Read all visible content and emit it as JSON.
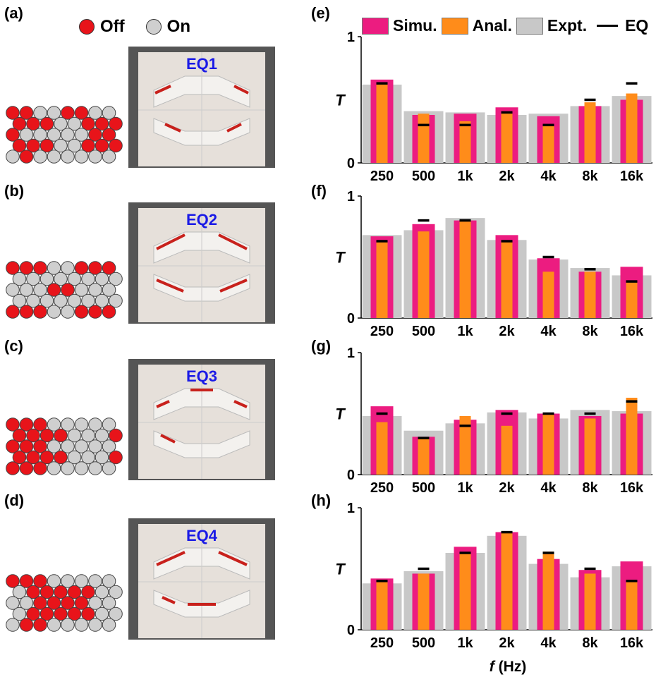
{
  "legend_state": {
    "off": "Off",
    "on": "On",
    "off_color": "#e8141a",
    "on_color": "#cfcfcf"
  },
  "panels_left": [
    {
      "label": "(a)",
      "eq": "EQ1",
      "grid": [
        [
          1,
          1,
          0,
          0,
          1,
          1,
          0,
          0
        ],
        [
          1,
          1,
          1,
          0,
          0,
          1,
          1,
          1
        ],
        [
          1,
          0,
          0,
          0,
          0,
          0,
          1,
          1
        ],
        [
          1,
          1,
          1,
          0,
          0,
          1,
          1,
          1
        ],
        [
          0,
          1,
          0,
          0,
          0,
          0,
          0,
          0
        ]
      ]
    },
    {
      "label": "(b)",
      "eq": "EQ2",
      "grid": [
        [
          1,
          1,
          1,
          0,
          0,
          1,
          1,
          1
        ],
        [
          0,
          0,
          0,
          0,
          0,
          0,
          0,
          0
        ],
        [
          0,
          0,
          0,
          1,
          1,
          0,
          0,
          0
        ],
        [
          0,
          0,
          0,
          0,
          0,
          0,
          0,
          0
        ],
        [
          1,
          1,
          1,
          0,
          0,
          1,
          1,
          1
        ]
      ]
    },
    {
      "label": "(c)",
      "eq": "EQ3",
      "grid": [
        [
          1,
          1,
          1,
          0,
          0,
          0,
          0,
          0
        ],
        [
          1,
          1,
          1,
          1,
          0,
          0,
          0,
          1
        ],
        [
          1,
          1,
          1,
          0,
          0,
          0,
          0,
          0
        ],
        [
          1,
          1,
          1,
          1,
          0,
          0,
          0,
          1
        ],
        [
          1,
          1,
          1,
          0,
          0,
          0,
          0,
          0
        ]
      ]
    },
    {
      "label": "(d)",
      "eq": "EQ4",
      "grid": [
        [
          1,
          1,
          1,
          0,
          0,
          0,
          0,
          0
        ],
        [
          0,
          1,
          1,
          1,
          1,
          1,
          0,
          0
        ],
        [
          0,
          0,
          1,
          1,
          1,
          1,
          0,
          0
        ],
        [
          0,
          1,
          1,
          1,
          1,
          1,
          0,
          0
        ],
        [
          0,
          1,
          1,
          0,
          0,
          0,
          0,
          0
        ]
      ]
    }
  ],
  "legend_chart": {
    "simu": "Simu.",
    "anal": "Anal.",
    "expt": "Expt.",
    "eq": "EQ",
    "simu_color": "#ec1c80",
    "anal_color": "#ff8c1a",
    "expt_color": "#c8c8c8",
    "eq_color": "#000000"
  },
  "xlabel": "f (Hz)",
  "chart_data": [
    {
      "type": "bar",
      "panel": "(e)",
      "ylabel": "T",
      "ylim": [
        0,
        1
      ],
      "yticks": [
        "0",
        "1"
      ],
      "categories": [
        "250",
        "500",
        "1k",
        "2k",
        "4k",
        "8k",
        "16k"
      ],
      "series": [
        {
          "name": "Simu.",
          "values": [
            0.66,
            0.38,
            0.39,
            0.44,
            0.37,
            0.45,
            0.5
          ]
        },
        {
          "name": "Anal.",
          "values": [
            0.63,
            0.39,
            0.33,
            0.4,
            0.3,
            0.48,
            0.55
          ]
        },
        {
          "name": "Expt.",
          "values": [
            0.62,
            0.41,
            0.4,
            0.38,
            0.39,
            0.45,
            0.53
          ]
        },
        {
          "name": "EQ",
          "values": [
            0.63,
            0.3,
            0.3,
            0.4,
            0.3,
            0.5,
            0.63
          ]
        }
      ]
    },
    {
      "type": "bar",
      "panel": "(f)",
      "ylabel": "T",
      "ylim": [
        0,
        1
      ],
      "yticks": [
        "0",
        "1"
      ],
      "categories": [
        "250",
        "500",
        "1k",
        "2k",
        "4k",
        "8k",
        "16k"
      ],
      "series": [
        {
          "name": "Simu.",
          "values": [
            0.67,
            0.77,
            0.8,
            0.68,
            0.49,
            0.38,
            0.42
          ]
        },
        {
          "name": "Anal.",
          "values": [
            0.63,
            0.71,
            0.8,
            0.63,
            0.38,
            0.38,
            0.3
          ]
        },
        {
          "name": "Expt.",
          "values": [
            0.68,
            0.72,
            0.82,
            0.64,
            0.48,
            0.41,
            0.35
          ]
        },
        {
          "name": "EQ",
          "values": [
            0.63,
            0.8,
            0.8,
            0.63,
            0.5,
            0.4,
            0.3
          ]
        }
      ]
    },
    {
      "type": "bar",
      "panel": "(g)",
      "ylabel": "T",
      "ylim": [
        0,
        1
      ],
      "yticks": [
        "0",
        "1"
      ],
      "categories": [
        "250",
        "500",
        "1k",
        "2k",
        "4k",
        "8k",
        "16k"
      ],
      "series": [
        {
          "name": "Simu.",
          "values": [
            0.56,
            0.31,
            0.45,
            0.53,
            0.5,
            0.48,
            0.5
          ]
        },
        {
          "name": "Anal.",
          "values": [
            0.43,
            0.3,
            0.48,
            0.4,
            0.5,
            0.46,
            0.63
          ]
        },
        {
          "name": "Expt.",
          "values": [
            0.48,
            0.36,
            0.42,
            0.51,
            0.46,
            0.53,
            0.52
          ]
        },
        {
          "name": "EQ",
          "values": [
            0.5,
            0.3,
            0.4,
            0.5,
            0.5,
            0.5,
            0.6
          ]
        }
      ]
    },
    {
      "type": "bar",
      "panel": "(h)",
      "ylabel": "T",
      "ylim": [
        0,
        1
      ],
      "yticks": [
        "0",
        "1"
      ],
      "categories": [
        "250",
        "500",
        "1k",
        "2k",
        "4k",
        "8k",
        "16k"
      ],
      "series": [
        {
          "name": "Simu.",
          "values": [
            0.42,
            0.46,
            0.68,
            0.8,
            0.58,
            0.49,
            0.56
          ]
        },
        {
          "name": "Anal.",
          "values": [
            0.4,
            0.46,
            0.63,
            0.8,
            0.64,
            0.46,
            0.4
          ]
        },
        {
          "name": "Expt.",
          "values": [
            0.38,
            0.48,
            0.63,
            0.77,
            0.54,
            0.43,
            0.52
          ]
        },
        {
          "name": "EQ",
          "values": [
            0.4,
            0.5,
            0.63,
            0.8,
            0.63,
            0.5,
            0.4
          ]
        }
      ]
    }
  ]
}
